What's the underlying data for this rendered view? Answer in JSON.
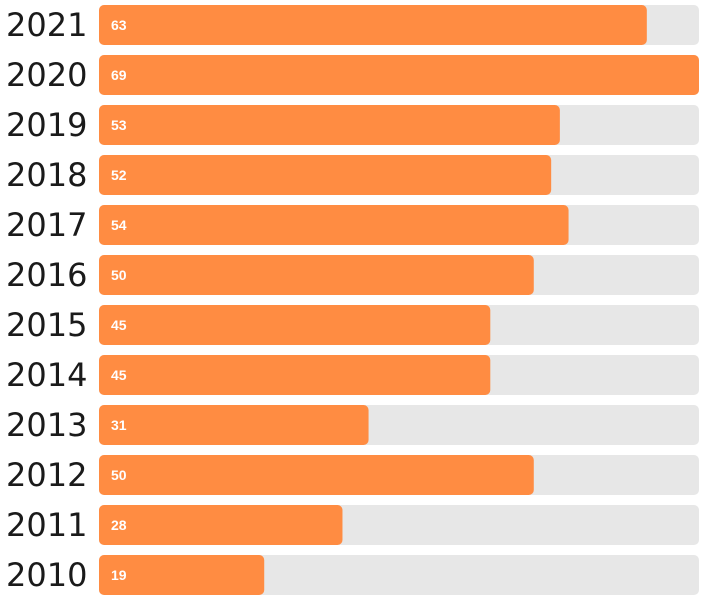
{
  "chart_data": {
    "type": "bar",
    "orientation": "horizontal",
    "categories": [
      "2021",
      "2020",
      "2019",
      "2018",
      "2017",
      "2016",
      "2015",
      "2014",
      "2013",
      "2012",
      "2011",
      "2010"
    ],
    "values": [
      63,
      69,
      53,
      52,
      54,
      50,
      45,
      45,
      31,
      50,
      28,
      19
    ],
    "xlim": [
      0,
      69
    ],
    "title": "",
    "xlabel": "",
    "ylabel": "",
    "grid": false,
    "legend": "none"
  },
  "colors": {
    "bar": "#ff8c42",
    "track": "#e7e7e7",
    "category_text": "#1a1a1a",
    "value_text": "#ffffff"
  }
}
